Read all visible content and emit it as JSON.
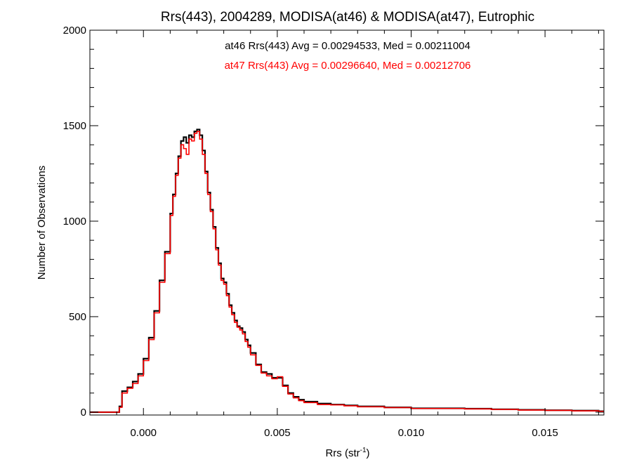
{
  "chart_data": {
    "type": "line",
    "title": "Rrs(443), 2004289, MODISA(at46) & MODISA(at47), Eutrophic",
    "xlabel": "Rrs (str",
    "xlabel_sup": "-1",
    "xlabel_end": ")",
    "ylabel": "Number of Observations",
    "xlim": [
      -0.002,
      0.0172
    ],
    "ylim": [
      -15,
      2000
    ],
    "x_ticks": [
      0.0,
      0.005,
      0.01,
      0.015
    ],
    "x_tick_labels": [
      "0.000",
      "0.005",
      "0.010",
      "0.015"
    ],
    "y_ticks": [
      0,
      500,
      1000,
      1500,
      2000
    ],
    "y_tick_labels": [
      "0",
      "500",
      "1000",
      "1500",
      "2000"
    ],
    "grid": false,
    "annotations": [
      {
        "text": "at46 Rrs(443) Avg = 0.00294533, Med = 0.00211004",
        "color": "#000000"
      },
      {
        "text": "at47 Rrs(443) Avg = 0.00296640, Med = 0.00212706",
        "color": "#ff0000"
      }
    ],
    "series": [
      {
        "color": "#000000",
        "x": [
          -0.002,
          -0.0011,
          -0.0009,
          -0.0008,
          -0.0006,
          -0.0004,
          -0.0002,
          0.0,
          0.0002,
          0.0004,
          0.0006,
          0.0008,
          0.001,
          0.0011,
          0.0012,
          0.0013,
          0.0014,
          0.0015,
          0.0016,
          0.0017,
          0.0018,
          0.0019,
          0.002,
          0.0021,
          0.0022,
          0.0023,
          0.0024,
          0.0025,
          0.0026,
          0.0027,
          0.0028,
          0.0029,
          0.003,
          0.0031,
          0.0032,
          0.0033,
          0.0034,
          0.0035,
          0.0036,
          0.0037,
          0.0038,
          0.0039,
          0.004,
          0.0042,
          0.0044,
          0.0046,
          0.0048,
          0.005,
          0.0052,
          0.0054,
          0.0056,
          0.0058,
          0.006,
          0.0065,
          0.007,
          0.0075,
          0.008,
          0.0085,
          0.009,
          0.0095,
          0.01,
          0.011,
          0.012,
          0.013,
          0.014,
          0.015,
          0.016,
          0.017
        ],
        "y": [
          0,
          0,
          30,
          110,
          130,
          160,
          200,
          280,
          390,
          530,
          690,
          840,
          1040,
          1140,
          1250,
          1340,
          1420,
          1440,
          1410,
          1450,
          1440,
          1470,
          1480,
          1450,
          1370,
          1260,
          1150,
          1060,
          970,
          860,
          780,
          700,
          680,
          620,
          560,
          520,
          480,
          450,
          440,
          420,
          380,
          350,
          310,
          250,
          210,
          200,
          180,
          180,
          140,
          100,
          80,
          65,
          55,
          45,
          40,
          35,
          30,
          30,
          25,
          25,
          20,
          20,
          18,
          15,
          12,
          10,
          8,
          5
        ]
      },
      {
        "color": "#ff0000",
        "x": [
          -0.002,
          -0.0011,
          -0.0009,
          -0.0008,
          -0.0006,
          -0.0004,
          -0.0002,
          0.0,
          0.0002,
          0.0004,
          0.0006,
          0.0008,
          0.001,
          0.0011,
          0.0012,
          0.0013,
          0.0014,
          0.0015,
          0.0016,
          0.0017,
          0.0018,
          0.0019,
          0.002,
          0.0021,
          0.0022,
          0.0023,
          0.0024,
          0.0025,
          0.0026,
          0.0027,
          0.0028,
          0.0029,
          0.003,
          0.0031,
          0.0032,
          0.0033,
          0.0034,
          0.0035,
          0.0036,
          0.0037,
          0.0038,
          0.0039,
          0.004,
          0.0042,
          0.0044,
          0.0046,
          0.0048,
          0.005,
          0.0052,
          0.0054,
          0.0056,
          0.0058,
          0.006,
          0.0065,
          0.007,
          0.0075,
          0.008,
          0.0085,
          0.009,
          0.0095,
          0.01,
          0.011,
          0.012,
          0.013,
          0.014,
          0.015,
          0.016,
          0.017
        ],
        "y": [
          0,
          0,
          25,
          100,
          125,
          150,
          190,
          270,
          380,
          520,
          680,
          830,
          1030,
          1130,
          1240,
          1330,
          1400,
          1380,
          1350,
          1430,
          1420,
          1460,
          1470,
          1430,
          1350,
          1250,
          1140,
          1050,
          960,
          850,
          770,
          690,
          670,
          610,
          550,
          510,
          470,
          445,
          430,
          410,
          370,
          340,
          300,
          245,
          205,
          190,
          175,
          185,
          135,
          95,
          75,
          60,
          50,
          40,
          38,
          33,
          28,
          28,
          24,
          24,
          19,
          19,
          17,
          14,
          11,
          9,
          7,
          4
        ]
      }
    ]
  }
}
